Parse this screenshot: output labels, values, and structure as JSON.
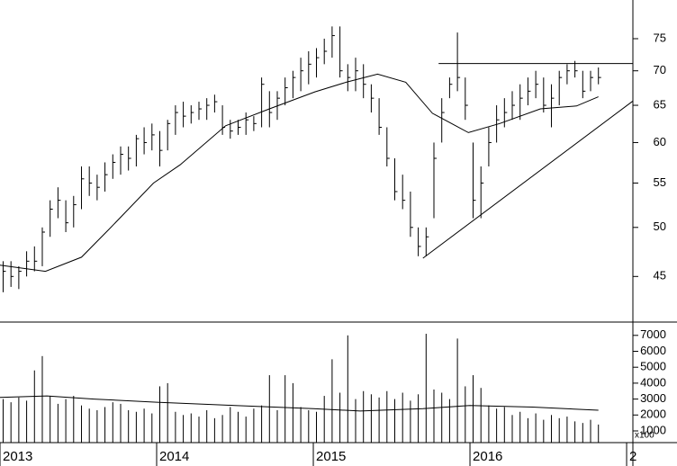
{
  "chart_data": [
    {
      "type": "ohlc",
      "log_scale": true,
      "color": "#000000",
      "x": [
        2013.02,
        2013.07,
        2013.12,
        2013.17,
        2013.22,
        2013.27,
        2013.32,
        2013.37,
        2013.42,
        2013.47,
        2013.52,
        2013.57,
        2013.62,
        2013.67,
        2013.72,
        2013.77,
        2013.82,
        2013.87,
        2013.92,
        2013.97,
        2014.02,
        2014.07,
        2014.12,
        2014.17,
        2014.22,
        2014.27,
        2014.32,
        2014.37,
        2014.42,
        2014.47,
        2014.52,
        2014.57,
        2014.62,
        2014.67,
        2014.72,
        2014.77,
        2014.82,
        2014.87,
        2014.92,
        2014.97,
        2015.02,
        2015.07,
        2015.12,
        2015.17,
        2015.22,
        2015.27,
        2015.32,
        2015.37,
        2015.42,
        2015.47,
        2015.52,
        2015.57,
        2015.62,
        2015.67,
        2015.72,
        2015.77,
        2015.82,
        2015.87,
        2015.92,
        2015.97,
        2016.02,
        2016.07,
        2016.12,
        2016.17,
        2016.22,
        2016.27,
        2016.32,
        2016.37,
        2016.42,
        2016.47,
        2016.52,
        2016.57,
        2016.62,
        2016.67,
        2016.72,
        2016.77,
        2016.82
      ],
      "low": [
        43.5,
        44,
        43.8,
        45,
        45.5,
        46,
        49,
        51,
        49.5,
        50,
        52,
        53.5,
        53,
        54,
        55.5,
        56,
        56.5,
        57,
        58.5,
        59,
        57,
        59,
        61,
        62,
        62.5,
        63,
        63,
        64,
        61,
        60.5,
        61,
        61,
        61.5,
        62,
        62,
        63,
        65,
        66,
        67,
        68,
        69,
        71,
        72,
        69,
        67,
        67,
        66,
        64,
        61,
        57,
        53,
        52,
        49,
        47,
        47,
        51,
        60,
        66,
        67,
        63,
        51,
        51,
        57,
        60,
        62,
        63,
        63,
        65,
        66,
        64,
        62,
        65,
        68,
        69,
        66,
        67,
        68
      ],
      "high": [
        46.5,
        46.5,
        46,
        47.5,
        48,
        50,
        53,
        54.5,
        53,
        53.5,
        57,
        57,
        56,
        57.5,
        58.5,
        59.5,
        59.5,
        61,
        62,
        62.5,
        61.5,
        63,
        65,
        65.5,
        65,
        65.5,
        66,
        66.5,
        65,
        63,
        63,
        64,
        63.5,
        69,
        67,
        67,
        69,
        70,
        72,
        73,
        73.5,
        75,
        77,
        77,
        71,
        72,
        71,
        68,
        66,
        62,
        58,
        56,
        54,
        50,
        50,
        60,
        66,
        69,
        76,
        69,
        60,
        57,
        62,
        65,
        66,
        67,
        68,
        69,
        70,
        69,
        68,
        70,
        71,
        71.5,
        70,
        70,
        70.5
      ],
      "close": [
        45.5,
        45,
        45.5,
        46.5,
        46.5,
        49.5,
        52,
        53,
        50.5,
        52.5,
        55.5,
        55,
        54.5,
        56,
        57.5,
        58.5,
        58,
        60.5,
        60,
        61,
        59,
        62.5,
        64,
        63.5,
        64,
        64.5,
        65,
        65.5,
        62,
        61.5,
        62,
        63,
        62.5,
        68,
        64,
        66,
        67.5,
        69,
        70,
        71,
        72,
        73,
        75.5,
        70,
        69,
        70,
        68,
        66,
        62,
        58,
        54,
        53,
        50,
        48,
        49,
        58,
        64,
        68,
        69,
        65,
        53,
        55,
        60,
        63,
        64,
        65,
        66,
        67,
        68,
        65,
        66,
        69,
        70,
        70,
        67,
        69,
        69
      ],
      "ma": {
        "x": [
          2013.0,
          2013.29,
          2013.52,
          2013.69,
          2013.98,
          2014.15,
          2014.44,
          2014.72,
          2015.01,
          2015.21,
          2015.41,
          2015.59,
          2015.76,
          2015.99,
          2016.19,
          2016.45,
          2016.68,
          2016.82
        ],
        "values": [
          46.1,
          45.5,
          46.9,
          49.7,
          55,
          57.2,
          62.2,
          64.5,
          66.9,
          68.3,
          69.5,
          68.3,
          63.9,
          61.3,
          62.5,
          64.5,
          64.9,
          66.2
        ]
      },
      "lines": [
        {
          "x": [
            2015.8,
            2017.04
          ],
          "values": [
            71.1,
            71.1
          ]
        },
        {
          "x": [
            2015.7,
            2017.04
          ],
          "values": [
            46.8,
            65.6
          ]
        }
      ],
      "xlim": [
        2013,
        2017.04
      ],
      "ylim": [
        40.8,
        81.5
      ],
      "yticks": [
        45,
        50,
        55,
        60,
        65,
        70,
        75
      ]
    },
    {
      "type": "bar",
      "color": "#000000",
      "axis_multiplier": "x100",
      "x": [
        2013.02,
        2013.07,
        2013.12,
        2013.17,
        2013.22,
        2013.27,
        2013.32,
        2013.37,
        2013.42,
        2013.47,
        2013.52,
        2013.57,
        2013.62,
        2013.67,
        2013.72,
        2013.77,
        2013.82,
        2013.87,
        2013.92,
        2013.97,
        2014.02,
        2014.07,
        2014.12,
        2014.17,
        2014.22,
        2014.27,
        2014.32,
        2014.37,
        2014.42,
        2014.47,
        2014.52,
        2014.57,
        2014.62,
        2014.67,
        2014.72,
        2014.77,
        2014.82,
        2014.87,
        2014.92,
        2014.97,
        2015.02,
        2015.07,
        2015.12,
        2015.17,
        2015.22,
        2015.27,
        2015.32,
        2015.37,
        2015.42,
        2015.47,
        2015.52,
        2015.57,
        2015.62,
        2015.67,
        2015.72,
        2015.77,
        2015.82,
        2015.87,
        2015.92,
        2015.97,
        2016.02,
        2016.07,
        2016.12,
        2016.17,
        2016.22,
        2016.27,
        2016.32,
        2016.37,
        2016.42,
        2016.47,
        2016.52,
        2016.57,
        2016.62,
        2016.67,
        2016.72,
        2016.77,
        2016.82
      ],
      "values": [
        3000,
        2800,
        3100,
        2900,
        4800,
        5700,
        3200,
        2700,
        3000,
        3200,
        2600,
        2400,
        2300,
        2500,
        2800,
        2700,
        2300,
        2200,
        2400,
        2100,
        3800,
        4000,
        2200,
        2000,
        2100,
        1900,
        2300,
        1800,
        2000,
        2500,
        2200,
        1900,
        2400,
        2600,
        4500,
        2300,
        4500,
        4000,
        2500,
        2300,
        2200,
        3200,
        5500,
        3400,
        7000,
        3000,
        3500,
        3300,
        3100,
        3500,
        3000,
        3400,
        2900,
        3300,
        7100,
        3600,
        3400,
        3000,
        6800,
        3800,
        4500,
        3700,
        2600,
        2400,
        2500,
        2000,
        2200,
        1800,
        2100,
        1700,
        2000,
        1800,
        1900,
        1600,
        1500,
        1700,
        1400
      ],
      "ma": {
        "x": [
          2013.0,
          2013.3,
          2013.6,
          2014.0,
          2014.5,
          2015.0,
          2015.3,
          2015.7,
          2016.0,
          2016.4,
          2016.82
        ],
        "values": [
          3100,
          3200,
          3000,
          2800,
          2600,
          2400,
          2250,
          2400,
          2600,
          2500,
          2300
        ]
      },
      "xlim": [
        2013,
        2017.04
      ],
      "ylim": [
        266,
        7836
      ],
      "yticks": [
        1000,
        2000,
        3000,
        4000,
        5000,
        6000,
        7000
      ],
      "xticks": [
        2013,
        2014,
        2015,
        2016,
        {
          "value": 2017,
          "label": "2"
        }
      ]
    }
  ]
}
